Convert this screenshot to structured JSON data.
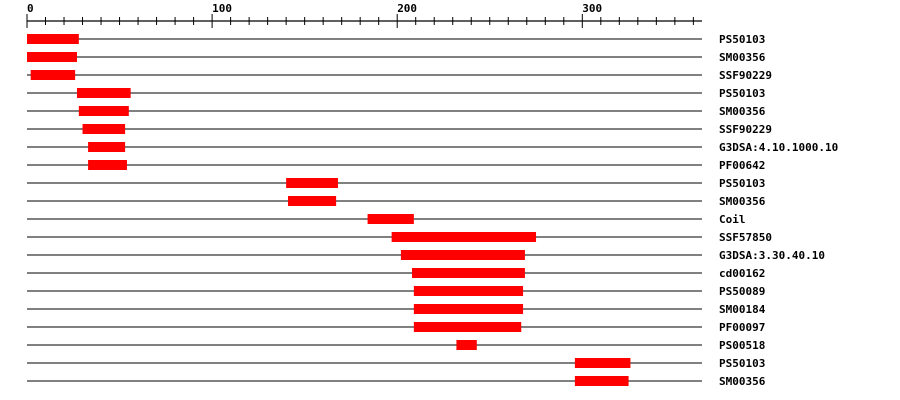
{
  "chart_data": {
    "type": "diagram",
    "axis": {
      "min": 0,
      "max": 365,
      "major_ticks": [
        0,
        100,
        200,
        300
      ],
      "minor_tick_step": 10
    },
    "bar_color": "#ff0000",
    "features": [
      {
        "label": "PS50103",
        "start": 1,
        "end": 28
      },
      {
        "label": "SM00356",
        "start": 1,
        "end": 27
      },
      {
        "label": "SSF90229",
        "start": 3,
        "end": 26
      },
      {
        "label": "PS50103",
        "start": 28,
        "end": 56
      },
      {
        "label": "SM00356",
        "start": 29,
        "end": 55
      },
      {
        "label": "SSF90229",
        "start": 31,
        "end": 53
      },
      {
        "label": "G3DSA:4.10.1000.10",
        "start": 34,
        "end": 53
      },
      {
        "label": "PF00642",
        "start": 34,
        "end": 54
      },
      {
        "label": "PS50103",
        "start": 141,
        "end": 168
      },
      {
        "label": "SM00356",
        "start": 142,
        "end": 167
      },
      {
        "label": "Coil",
        "start": 185,
        "end": 209
      },
      {
        "label": "SSF57850",
        "start": 198,
        "end": 275
      },
      {
        "label": "G3DSA:3.30.40.10",
        "start": 203,
        "end": 269
      },
      {
        "label": "cd00162",
        "start": 209,
        "end": 269
      },
      {
        "label": "PS50089",
        "start": 210,
        "end": 268
      },
      {
        "label": "SM00184",
        "start": 210,
        "end": 268
      },
      {
        "label": "PF00097",
        "start": 210,
        "end": 267
      },
      {
        "label": "PS00518",
        "start": 233,
        "end": 243
      },
      {
        "label": "PS50103",
        "start": 297,
        "end": 326
      },
      {
        "label": "SM00356",
        "start": 297,
        "end": 325
      }
    ]
  }
}
